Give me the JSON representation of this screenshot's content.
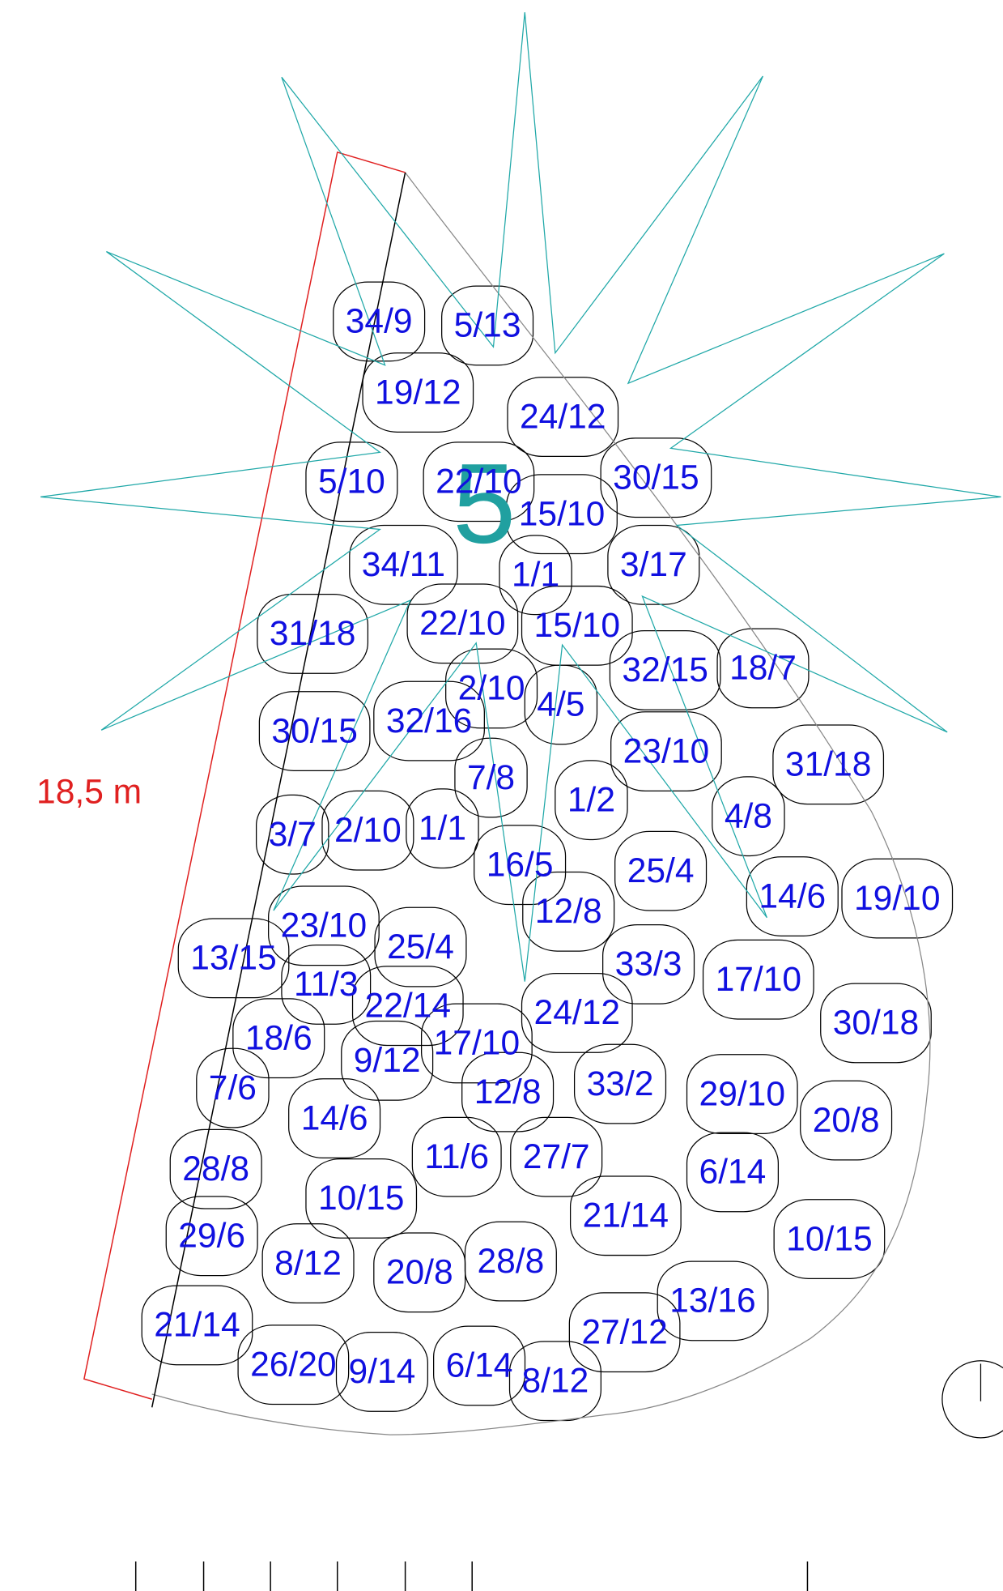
{
  "labels": [
    "34/9",
    "5/13",
    "19/12",
    "24/12",
    "5/10",
    "22/10",
    "15/10",
    "30/15",
    "34/11",
    "1/1",
    "3/17",
    "31/18",
    "22/10",
    "15/10",
    "32/15",
    "18/7",
    "2/10",
    "4/5",
    "30/15",
    "32/16",
    "23/10",
    "31/18",
    "7/8",
    "1/2",
    "4/8",
    "3/7",
    "2/10",
    "1/1",
    "16/5",
    "25/4",
    "14/6",
    "19/10",
    "12/8",
    "23/10",
    "13/15",
    "25/4",
    "33/3",
    "17/10",
    "11/3",
    "22/14",
    "24/12",
    "30/18",
    "18/6",
    "17/10",
    "9/12",
    "7/6",
    "33/2",
    "12/8",
    "29/10",
    "20/8",
    "14/6",
    "11/6",
    "27/7",
    "6/14",
    "28/8",
    "10/15",
    "21/14",
    "29/6",
    "10/15",
    "8/12",
    "20/8",
    "28/8",
    "13/16",
    "21/14",
    "27/12",
    "26/20",
    "9/14",
    "6/14",
    "8/12"
  ],
  "dimension": "18,5 m",
  "plant_label": "5",
  "scale": [
    "0",
    "5",
    "10"
  ]
}
